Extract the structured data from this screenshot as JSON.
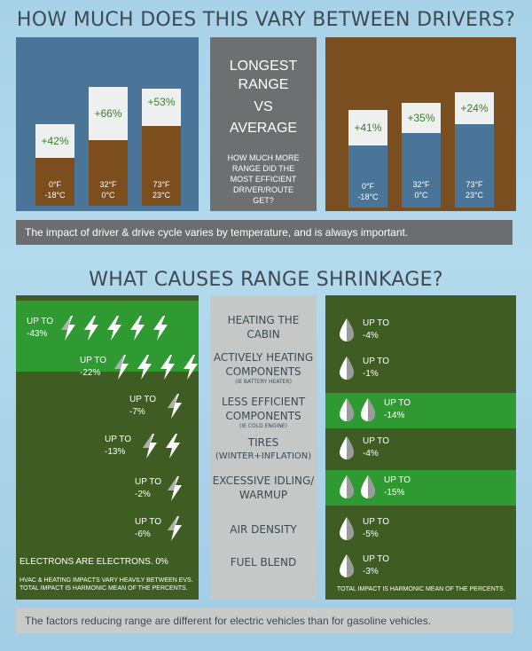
{
  "titles": {
    "vary": "HOW MUCH DOES THIS VARY BETWEEN DRIVERS?",
    "causes": "WHAT CAUSES RANGE SHRINKAGE?"
  },
  "ev_bars": [
    {
      "pct": "+42%",
      "f": "0°F",
      "c": "-18°C"
    },
    {
      "pct": "+66%",
      "f": "32°F",
      "c": "0°C"
    },
    {
      "pct": "+53%",
      "f": "73°F",
      "c": "23°C"
    }
  ],
  "gas_bars": [
    {
      "pct": "+41%",
      "f": "0°F",
      "c": "-18°C"
    },
    {
      "pct": "+35%",
      "f": "32°F",
      "c": "0°C"
    },
    {
      "pct": "+24%",
      "f": "73°F",
      "c": "23°C"
    }
  ],
  "middle": {
    "l1": "LONGEST",
    "l2": "RANGE",
    "l3": "VS",
    "l4": "AVERAGE",
    "sub": "HOW MUCH MORE RANGE DID THE MOST EFFICIENT DRIVER/ROUTE GET?"
  },
  "strip1": "The impact of driver & drive cycle varies by temperature, and is always important.",
  "strip2": "The factors reducing range are different for electric vehicles than for gasoline vehicles.",
  "ev_rows": [
    {
      "l1": "UP TO",
      "l2": "-43%",
      "bolts": 5
    },
    {
      "l1": "UP TO",
      "l2": "-22%",
      "bolts": 4
    },
    {
      "l1": "UP TO",
      "l2": "-7%",
      "bolts": 1
    },
    {
      "l1": "UP TO",
      "l2": "-13%",
      "bolts": 2
    },
    {
      "l1": "UP TO",
      "l2": "-2%",
      "bolts": 1
    },
    {
      "l1": "UP TO",
      "l2": "-6%",
      "bolts": 1
    }
  ],
  "factors": [
    {
      "l1": "HEATING THE",
      "l2": "CABIN",
      "note": ""
    },
    {
      "l1": "ACTIVELY HEATING",
      "l2": "COMPONENTS",
      "note": "(IE BATTERY HEATER)"
    },
    {
      "l1": "LESS EFFICIENT",
      "l2": "COMPONENTS",
      "note": "(IE COLD ENGINE)"
    },
    {
      "l1": "TIRES",
      "l2": "(WINTER+INFLATION)",
      "note": ""
    },
    {
      "l1": "EXCESSIVE IDLING/",
      "l2": "WARMUP",
      "note": ""
    },
    {
      "l1": "AIR DENSITY",
      "l2": "",
      "note": ""
    },
    {
      "l1": "FUEL BLEND",
      "l2": "",
      "note": ""
    }
  ],
  "gas_rows": [
    {
      "l1": "UP TO",
      "l2": "-4%"
    },
    {
      "l1": "UP TO",
      "l2": "-1%"
    },
    {
      "l1": "UP TO",
      "l2": "-14%"
    },
    {
      "l1": "UP TO",
      "l2": "-4%"
    },
    {
      "l1": "UP TO",
      "l2": "-15%"
    },
    {
      "l1": "UP TO",
      "l2": "-5%"
    },
    {
      "l1": "UP TO",
      "l2": "-3%"
    }
  ],
  "electrons": "ELECTRONS ARE ELECTRONS.  0%",
  "ev_foot": "HVAC & HEATING IMPACTS VARY HEAVILY BETWEEN EVS. TOTAL IMPACT IS HARMONIC MEAN OF THE PERCENTS.",
  "gas_foot": "TOTAL IMPACT IS HARMONIC MEAN OF THE PERCENTS.",
  "colors": {
    "ev_blue": "#4a7599",
    "gas_brown": "#7a4e1f",
    "dark_green": "#3f5c22",
    "bright_green": "#2f9a32",
    "bar_white": "#eef0f0"
  },
  "icons": {
    "electric": "lightning-bolt-icon",
    "gas": "fuel-drop-icon"
  }
}
